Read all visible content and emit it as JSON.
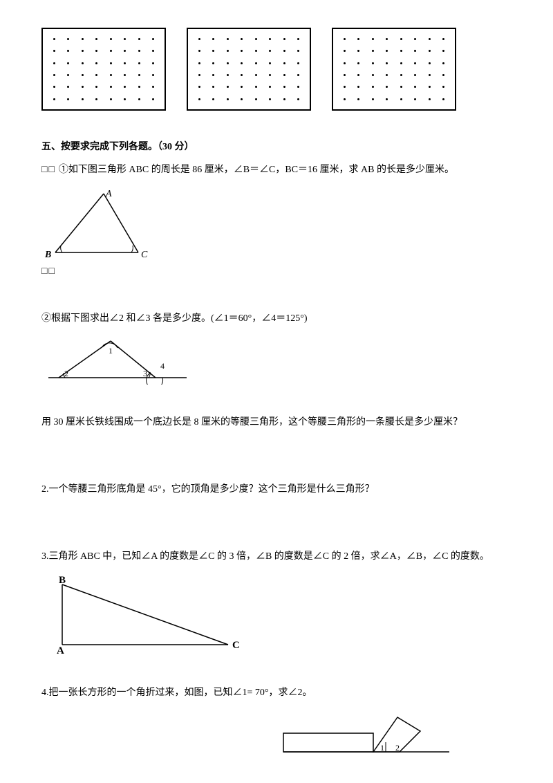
{
  "dot_grid": {
    "cols": 8,
    "rows": 6,
    "count": 3,
    "border_color": "#000000",
    "dot_color": "#000000"
  },
  "section5": {
    "title": "五、按要求完成下列各题。（30 分）",
    "q1_prefix": "□□",
    "q1_text": "①如下图三角形 ABC 的周长是 86 厘米，∠B＝∠C，BC＝16 厘米，求 AB 的长是多少厘米。",
    "q1_triangle": {
      "A": "A",
      "B": "B",
      "C": "C"
    },
    "q1_suffix": "□□",
    "q2_text": "②根据下图求出∠2 和∠3 各是多少度。(∠1＝60°，∠4＝125°)",
    "q2_labels": {
      "l1": "1",
      "l2": "2",
      "l3": "3",
      "l4": "4"
    },
    "q3_text": "用 30 厘米长铁线围成一个底边长是 8 厘米的等腰三角形，这个等腰三角形的一条腰长是多少厘米？",
    "q4_text": "2.一个等腰三角形底角是 45°，它的顶角是多少度？这个三角形是什么三角形？",
    "q5_text": "3.三角形 ABC 中，已知∠A 的度数是∠C 的 3 倍，∠B 的度数是∠C 的 2 倍，求∠A，∠B，∠C 的度数。",
    "q5_triangle": {
      "A": "A",
      "B": "B",
      "C": "C"
    },
    "q6_text": "4.把一张长方形的一个角折过来，如图，已知∠1= 70°，求∠2。",
    "q6_labels": {
      "l1": "1",
      "l2": "2"
    }
  },
  "colors": {
    "text": "#000000",
    "bg": "#ffffff",
    "line": "#000000"
  }
}
